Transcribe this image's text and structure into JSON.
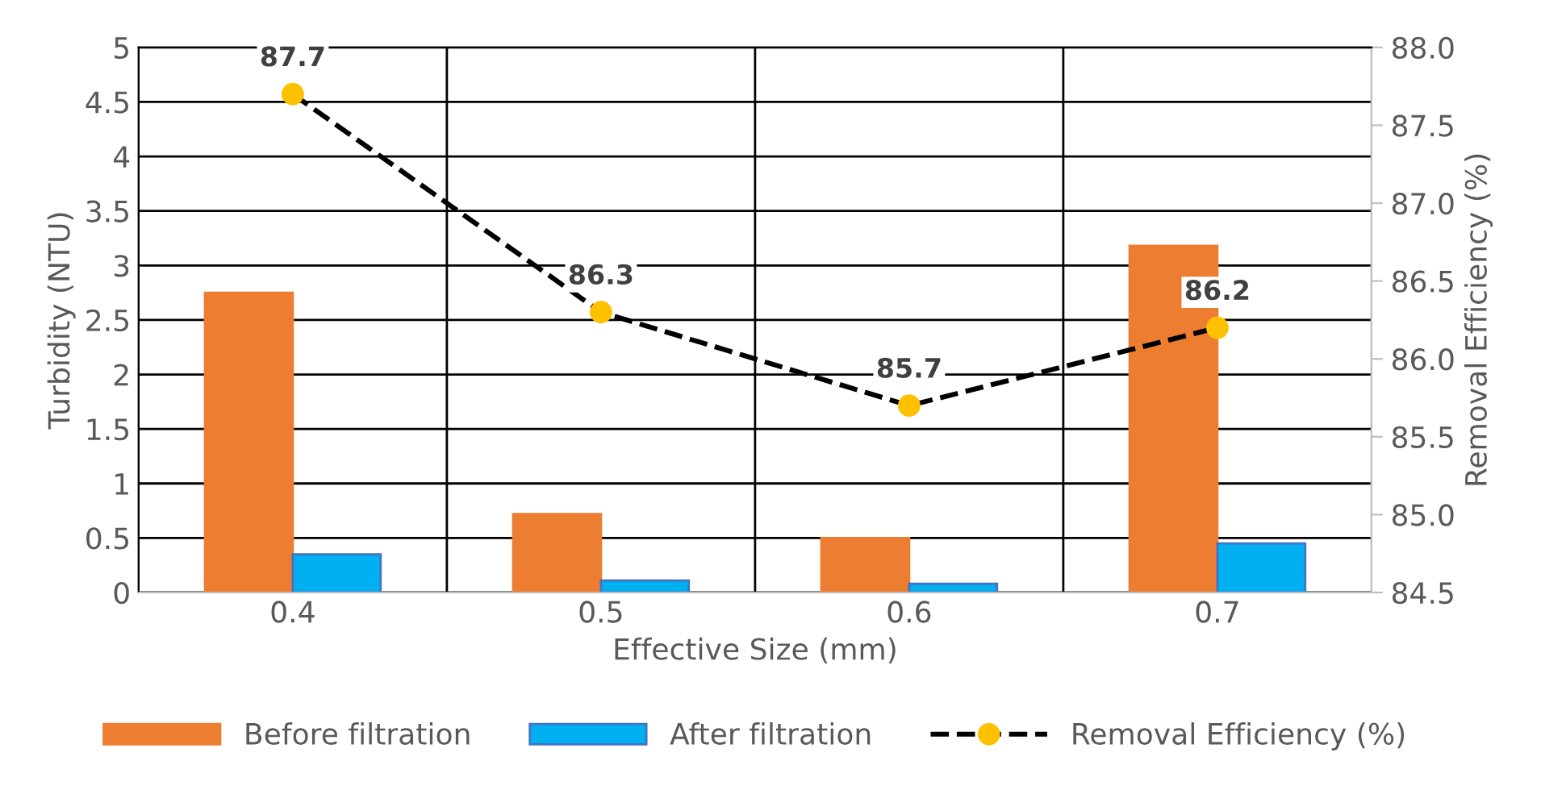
{
  "chart_data": {
    "type": "bar",
    "xlabel": "Effective Size (mm)",
    "ylabel": "Turbidity (NTU)",
    "y2label": "Removal Efficiency (%)",
    "categories": [
      "0.4",
      "0.5",
      "0.6",
      "0.7"
    ],
    "series": [
      {
        "name": "Before filtration",
        "color": "#ed7d31",
        "values": [
          2.75,
          0.72,
          0.5,
          3.18
        ]
      },
      {
        "name": "After filtration",
        "color": "#00b0f0",
        "values": [
          0.35,
          0.11,
          0.08,
          0.45
        ]
      },
      {
        "name": "Removal Efficiency (%)",
        "type": "line",
        "axis": "y2",
        "color": "#ffc000",
        "marker": "circle",
        "line_style": "dashed",
        "values": [
          87.7,
          86.3,
          85.7,
          86.2
        ],
        "value_labels": [
          "87.7",
          "86.3",
          "85.7",
          "86.2"
        ]
      }
    ],
    "ylim": [
      0,
      5
    ],
    "yticks": [
      0,
      0.5,
      1,
      1.5,
      2,
      2.5,
      3,
      3.5,
      4,
      4.5,
      5
    ],
    "y2lim": [
      84.5,
      88.0
    ],
    "y2ticks": [
      {
        "value": 84.5,
        "label": "84.5"
      },
      {
        "value": 85.0,
        "label": "85.0"
      },
      {
        "value": 85.5,
        "label": "85.5"
      },
      {
        "value": 86.0,
        "label": "86.0"
      },
      {
        "value": 86.5,
        "label": "86.5"
      },
      {
        "value": 87.0,
        "label": "87.0"
      },
      {
        "value": 87.5,
        "label": "87.5"
      },
      {
        "value": 88.0,
        "label": "88.0"
      }
    ],
    "grid": true,
    "legend": "bottom"
  }
}
